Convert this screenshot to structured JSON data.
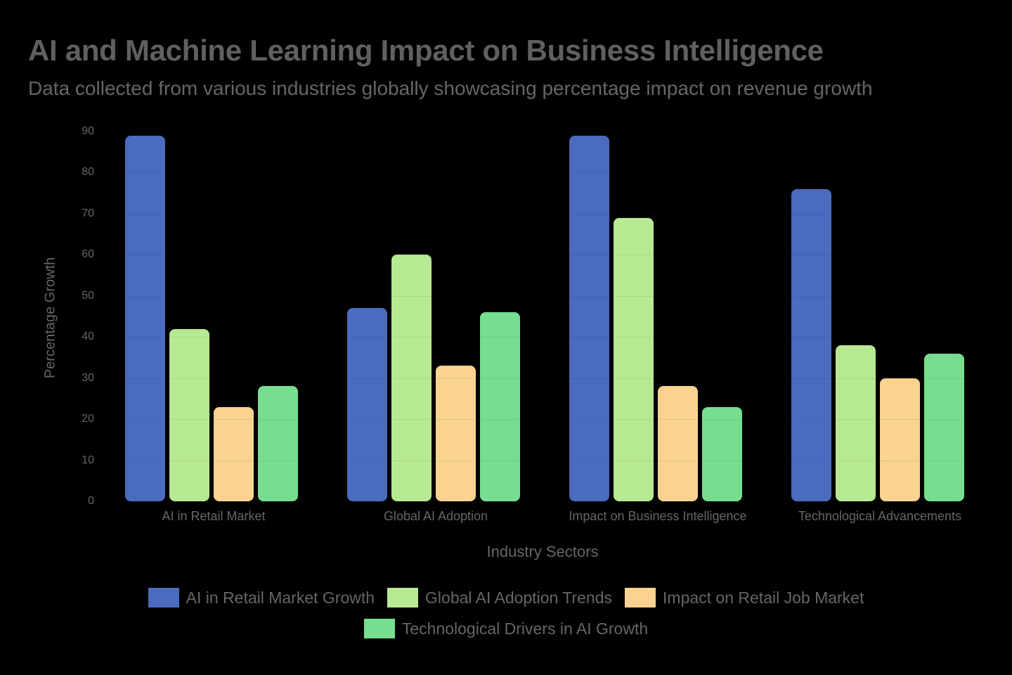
{
  "header": {
    "title": "AI and Machine Learning Impact on Business Intelligence",
    "subtitle": "Data collected from various industries globally showcasing percentage impact on revenue growth"
  },
  "axes": {
    "ylabel": "Percentage Growth",
    "xlabel": "Industry Sectors",
    "yticks": [
      "0",
      "10",
      "20",
      "30",
      "40",
      "50",
      "60",
      "70",
      "80",
      "90"
    ],
    "xticks": [
      "AI in Retail Market",
      "Global AI Adoption",
      "Impact on Business Intelligence",
      "Technological Advancements"
    ]
  },
  "legend": {
    "items": [
      {
        "label": "AI in Retail Market Growth",
        "color": "#4B6BBF"
      },
      {
        "label": "Global AI Adoption Trends",
        "color": "#B7E992"
      },
      {
        "label": "Impact on Retail Job Market",
        "color": "#F9D38F"
      },
      {
        "label": "Technological Drivers in AI Growth",
        "color": "#77DE8F"
      }
    ]
  },
  "chart_data": {
    "type": "bar",
    "title": "AI and Machine Learning Impact on Business Intelligence",
    "subtitle": "Data collected from various industries globally showcasing percentage impact on revenue growth",
    "xlabel": "Industry Sectors",
    "ylabel": "Percentage Growth",
    "ylim": [
      0,
      90
    ],
    "grid": true,
    "legend_position": "bottom",
    "categories": [
      "AI in Retail Market",
      "Global AI Adoption",
      "Impact on Business Intelligence",
      "Technological Advancements"
    ],
    "series": [
      {
        "name": "AI in Retail Market Growth",
        "color": "#4B6BBF",
        "values": [
          89,
          47,
          89,
          76
        ]
      },
      {
        "name": "Global AI Adoption Trends",
        "color": "#B7E992",
        "values": [
          42,
          60,
          69,
          38
        ]
      },
      {
        "name": "Impact on Retail Job Market",
        "color": "#F9D38F",
        "values": [
          23,
          33,
          28,
          30
        ]
      },
      {
        "name": "Technological Drivers in AI Growth",
        "color": "#77DE8F",
        "values": [
          28,
          46,
          23,
          36
        ]
      }
    ]
  }
}
